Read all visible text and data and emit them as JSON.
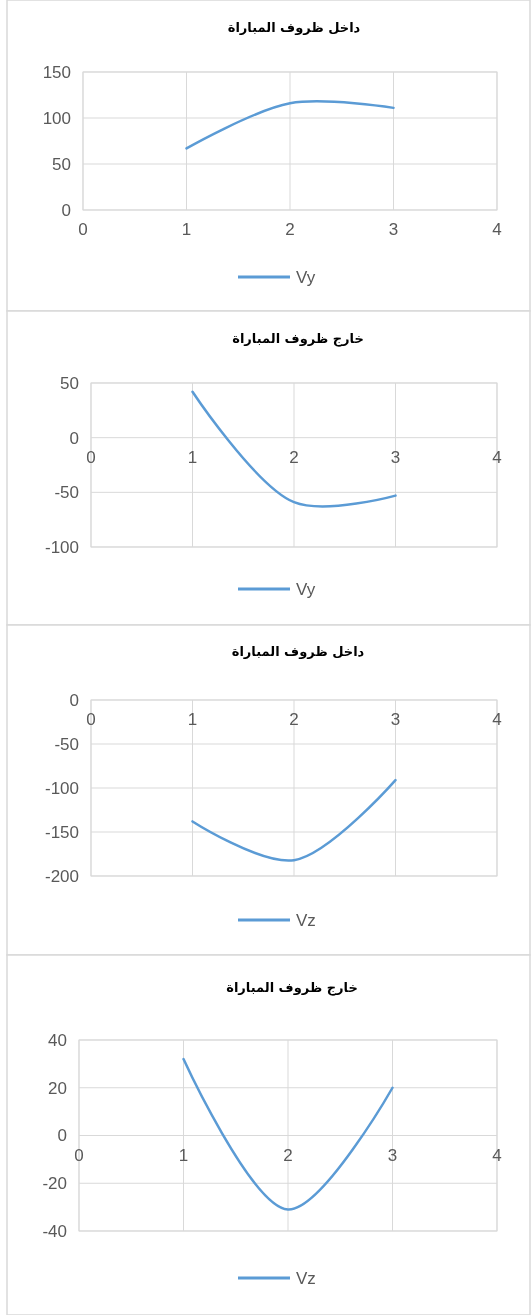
{
  "chart_data": [
    {
      "type": "line",
      "title": "داخل ظروف المباراة",
      "x": [
        1,
        2,
        3
      ],
      "series": [
        {
          "name": "Vy",
          "color": "#5b9bd5",
          "values": [
            67,
            116,
            111
          ]
        }
      ],
      "xlim": [
        0,
        4
      ],
      "xticks": [
        0,
        1,
        2,
        3,
        4
      ],
      "ylim": [
        0,
        150
      ],
      "yticks": [
        0,
        50,
        100,
        150
      ],
      "grid": true,
      "legend": "bottom"
    },
    {
      "type": "line",
      "title": "خارج ظروف المباراة",
      "x": [
        1,
        2,
        3
      ],
      "series": [
        {
          "name": "Vy",
          "color": "#5b9bd5",
          "values": [
            42,
            -59,
            -53
          ]
        }
      ],
      "xlim": [
        0,
        4
      ],
      "xticks": [
        0,
        1,
        2,
        3,
        4
      ],
      "ylim": [
        -100,
        50
      ],
      "yticks": [
        -100,
        -50,
        0,
        50
      ],
      "grid": true,
      "legend": "bottom"
    },
    {
      "type": "line",
      "title": "داخل ظروف المباراة",
      "x": [
        1,
        2,
        3
      ],
      "series": [
        {
          "name": "Vz",
          "color": "#5b9bd5",
          "values": [
            -138,
            -182,
            -91
          ]
        }
      ],
      "xlim": [
        0,
        4
      ],
      "xticks": [
        0,
        1,
        2,
        3,
        4
      ],
      "ylim": [
        -200,
        0
      ],
      "yticks": [
        -200,
        -150,
        -100,
        -50,
        0
      ],
      "grid": true,
      "legend": "bottom"
    },
    {
      "type": "line",
      "title": "خارج ظروف المباراة",
      "x": [
        1,
        2,
        3
      ],
      "series": [
        {
          "name": "Vz",
          "color": "#5b9bd5",
          "values": [
            32,
            -31,
            20
          ]
        }
      ],
      "xlim": [
        0,
        4
      ],
      "xticks": [
        0,
        1,
        2,
        3,
        4
      ],
      "ylim": [
        -40,
        40
      ],
      "yticks": [
        -40,
        -20,
        0,
        20,
        40
      ],
      "grid": true,
      "legend": "bottom"
    }
  ]
}
